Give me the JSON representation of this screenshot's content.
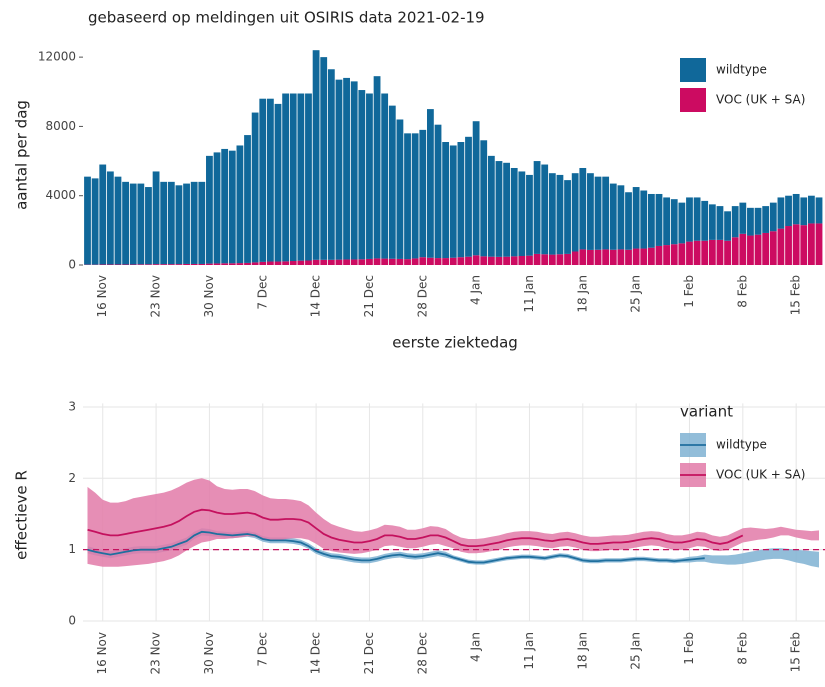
{
  "chart_data": [
    {
      "type": "stacked-bar",
      "title": "gebaseerd op meldingen uit OSIRIS data 2021-02-19",
      "ylabel": "aantal per dag",
      "xlabel": "eerste ziektedag",
      "categories": [
        null,
        null,
        "16 Nov",
        null,
        null,
        null,
        null,
        null,
        null,
        "23 Nov",
        null,
        null,
        null,
        null,
        null,
        null,
        "30 Nov",
        null,
        null,
        null,
        null,
        null,
        null,
        "7 Dec",
        null,
        null,
        null,
        null,
        null,
        null,
        "14 Dec",
        null,
        null,
        null,
        null,
        null,
        null,
        "21 Dec",
        null,
        null,
        null,
        null,
        null,
        null,
        "28 Dec",
        null,
        null,
        null,
        null,
        null,
        null,
        "4 Jan",
        null,
        null,
        null,
        null,
        null,
        null,
        "11 Jan",
        null,
        null,
        null,
        null,
        null,
        null,
        "18 Jan",
        null,
        null,
        null,
        null,
        null,
        null,
        "25 Jan",
        null,
        null,
        null,
        null,
        null,
        null,
        "1 Feb",
        null,
        null,
        null,
        null,
        null,
        null,
        "8 Feb",
        null,
        null,
        null,
        null,
        null,
        null,
        "15 Feb",
        null,
        null,
        null
      ],
      "series": [
        {
          "name": "wildtype",
          "color": "#10689a",
          "values": [
            5080,
            4980,
            5770,
            5370,
            5070,
            4770,
            4670,
            4660,
            4460,
            5350,
            4750,
            4750,
            4550,
            4640,
            4740,
            4740,
            6220,
            6410,
            6600,
            6500,
            6790,
            7380,
            8650,
            9420,
            9400,
            9100,
            9690,
            9670,
            9650,
            9640,
            12100,
            11700,
            11000,
            10390,
            10480,
            10280,
            9770,
            9550,
            10520,
            9530,
            8840,
            8050,
            7260,
            7220,
            7350,
            8580,
            7700,
            6700,
            6480,
            6650,
            6920,
            7740,
            6700,
            5820,
            5530,
            5420,
            5100,
            4880,
            4660,
            5360,
            5180,
            4700,
            4580,
            4260,
            4520,
            4700,
            4430,
            4220,
            4200,
            3820,
            3700,
            3320,
            3550,
            3350,
            3100,
            3000,
            2750,
            2600,
            2350,
            2550,
            2500,
            2300,
            2050,
            1950,
            1700,
            1800,
            1800,
            1600,
            1550,
            1550,
            1650,
            1800,
            1750,
            1750,
            1600,
            1600,
            1500
          ]
        },
        {
          "name": "VOC (UK + SA)",
          "color": "#cc0b61",
          "values": [
            20,
            20,
            30,
            30,
            30,
            30,
            30,
            40,
            40,
            50,
            50,
            50,
            50,
            60,
            60,
            60,
            80,
            90,
            100,
            100,
            110,
            120,
            150,
            180,
            200,
            200,
            210,
            230,
            250,
            260,
            300,
            300,
            300,
            310,
            320,
            320,
            330,
            350,
            380,
            370,
            360,
            350,
            340,
            380,
            450,
            420,
            400,
            400,
            420,
            450,
            480,
            560,
            500,
            480,
            470,
            480,
            500,
            520,
            540,
            640,
            620,
            600,
            620,
            640,
            780,
            900,
            870,
            880,
            900,
            880,
            900,
            880,
            950,
            950,
            1000,
            1100,
            1150,
            1200,
            1250,
            1350,
            1400,
            1400,
            1450,
            1450,
            1400,
            1600,
            1800,
            1700,
            1750,
            1850,
            1950,
            2100,
            2250,
            2350,
            2300,
            2400,
            2400
          ]
        }
      ],
      "ylim": [
        0,
        12700
      ],
      "yticks": [
        0,
        4000,
        8000,
        12000
      ],
      "grid": false,
      "legend": "top right"
    },
    {
      "type": "line-band",
      "ylabel": "effectieve R",
      "legend_title": "variant",
      "categories": [
        null,
        null,
        "16 Nov",
        null,
        null,
        null,
        null,
        null,
        null,
        "23 Nov",
        null,
        null,
        null,
        null,
        null,
        null,
        "30 Nov",
        null,
        null,
        null,
        null,
        null,
        null,
        "7 Dec",
        null,
        null,
        null,
        null,
        null,
        null,
        "14 Dec",
        null,
        null,
        null,
        null,
        null,
        null,
        "21 Dec",
        null,
        null,
        null,
        null,
        null,
        null,
        "28 Dec",
        null,
        null,
        null,
        null,
        null,
        null,
        "4 Jan",
        null,
        null,
        null,
        null,
        null,
        null,
        "11 Jan",
        null,
        null,
        null,
        null,
        null,
        null,
        "18 Jan",
        null,
        null,
        null,
        null,
        null,
        null,
        "25 Jan",
        null,
        null,
        null,
        null,
        null,
        null,
        "1 Feb",
        null,
        null,
        null,
        null,
        null,
        null,
        "8 Feb",
        null,
        null,
        null,
        null,
        null,
        null,
        "15 Feb",
        null,
        null,
        null
      ],
      "series": [
        {
          "name": "wildtype",
          "color": "#1f6f9e",
          "band_color": "#7fb2d2",
          "values": [
            1.0,
            0.97,
            0.95,
            0.93,
            0.95,
            0.97,
            0.99,
            1.0,
            1.0,
            1.0,
            1.02,
            1.04,
            1.08,
            1.12,
            1.2,
            1.25,
            1.24,
            1.22,
            1.21,
            1.2,
            1.21,
            1.22,
            1.2,
            1.15,
            1.13,
            1.13,
            1.13,
            1.12,
            1.1,
            1.05,
            0.98,
            0.94,
            0.91,
            0.9,
            0.88,
            0.86,
            0.85,
            0.85,
            0.87,
            0.9,
            0.92,
            0.93,
            0.91,
            0.9,
            0.91,
            0.93,
            0.95,
            0.93,
            0.89,
            0.86,
            0.83,
            0.82,
            0.82,
            0.84,
            0.86,
            0.88,
            0.89,
            0.9,
            0.9,
            0.89,
            0.88,
            0.9,
            0.92,
            0.91,
            0.88,
            0.85,
            0.84,
            0.84,
            0.85,
            0.85,
            0.85,
            0.86,
            0.87,
            0.87,
            0.86,
            0.85,
            0.85,
            0.84,
            0.85,
            0.86,
            0.87,
            0.88,
            null,
            null,
            null,
            null,
            null,
            null,
            null,
            null,
            null,
            null,
            null,
            null,
            null,
            null,
            null
          ],
          "lower": [
            0.95,
            0.92,
            0.9,
            0.88,
            0.9,
            0.92,
            0.94,
            0.95,
            0.95,
            0.95,
            0.97,
            0.99,
            1.03,
            1.07,
            1.15,
            1.2,
            1.19,
            1.18,
            1.17,
            1.16,
            1.17,
            1.18,
            1.16,
            1.11,
            1.09,
            1.09,
            1.09,
            1.08,
            1.06,
            1.01,
            0.94,
            0.9,
            0.87,
            0.86,
            0.84,
            0.82,
            0.81,
            0.81,
            0.83,
            0.86,
            0.88,
            0.89,
            0.87,
            0.86,
            0.87,
            0.89,
            0.91,
            0.89,
            0.86,
            0.83,
            0.8,
            0.79,
            0.79,
            0.81,
            0.83,
            0.85,
            0.86,
            0.87,
            0.87,
            0.86,
            0.85,
            0.87,
            0.89,
            0.88,
            0.85,
            0.82,
            0.81,
            0.81,
            0.82,
            0.82,
            0.82,
            0.83,
            0.84,
            0.84,
            0.83,
            0.82,
            0.82,
            0.81,
            0.82,
            0.82,
            0.83,
            0.83,
            0.81,
            0.8,
            0.79,
            0.79,
            0.8,
            0.82,
            0.84,
            0.86,
            0.87,
            0.87,
            0.85,
            0.82,
            0.8,
            0.77,
            0.75
          ],
          "upper": [
            1.05,
            1.02,
            1.0,
            0.98,
            1.0,
            1.02,
            1.04,
            1.05,
            1.05,
            1.05,
            1.07,
            1.09,
            1.13,
            1.17,
            1.25,
            1.3,
            1.29,
            1.26,
            1.25,
            1.24,
            1.25,
            1.26,
            1.24,
            1.19,
            1.17,
            1.17,
            1.17,
            1.16,
            1.14,
            1.09,
            1.02,
            0.98,
            0.95,
            0.94,
            0.92,
            0.9,
            0.89,
            0.89,
            0.91,
            0.94,
            0.96,
            0.97,
            0.95,
            0.94,
            0.95,
            0.97,
            0.99,
            0.97,
            0.92,
            0.89,
            0.86,
            0.85,
            0.85,
            0.87,
            0.89,
            0.91,
            0.92,
            0.93,
            0.93,
            0.92,
            0.91,
            0.93,
            0.95,
            0.94,
            0.91,
            0.88,
            0.87,
            0.87,
            0.88,
            0.88,
            0.88,
            0.89,
            0.9,
            0.9,
            0.89,
            0.88,
            0.88,
            0.87,
            0.88,
            0.9,
            0.91,
            0.93,
            0.92,
            0.92,
            0.92,
            0.93,
            0.95,
            0.97,
            0.99,
            1.01,
            1.02,
            1.02,
            1.01,
            1.0,
            0.99,
            0.98,
            0.97
          ]
        },
        {
          "name": "VOC (UK + SA)",
          "color": "#c4115e",
          "band_color": "#e27aa8",
          "values": [
            1.28,
            1.25,
            1.22,
            1.2,
            1.2,
            1.22,
            1.24,
            1.26,
            1.28,
            1.3,
            1.32,
            1.35,
            1.4,
            1.47,
            1.53,
            1.56,
            1.55,
            1.52,
            1.5,
            1.5,
            1.51,
            1.52,
            1.5,
            1.45,
            1.42,
            1.42,
            1.43,
            1.43,
            1.42,
            1.38,
            1.3,
            1.22,
            1.17,
            1.14,
            1.12,
            1.1,
            1.1,
            1.12,
            1.15,
            1.2,
            1.2,
            1.18,
            1.15,
            1.15,
            1.17,
            1.2,
            1.2,
            1.17,
            1.12,
            1.07,
            1.05,
            1.05,
            1.06,
            1.08,
            1.1,
            1.13,
            1.15,
            1.16,
            1.16,
            1.15,
            1.13,
            1.12,
            1.14,
            1.15,
            1.13,
            1.1,
            1.08,
            1.08,
            1.09,
            1.1,
            1.1,
            1.11,
            1.13,
            1.15,
            1.16,
            1.15,
            1.12,
            1.1,
            1.1,
            1.12,
            1.15,
            1.14,
            1.1,
            1.08,
            1.1,
            1.15,
            1.2,
            null,
            null,
            null,
            null,
            null,
            null,
            null,
            null,
            null,
            null
          ],
          "lower": [
            0.8,
            0.78,
            0.76,
            0.76,
            0.76,
            0.77,
            0.78,
            0.79,
            0.8,
            0.82,
            0.84,
            0.87,
            0.92,
            0.99,
            1.05,
            1.1,
            1.12,
            1.15,
            1.15,
            1.16,
            1.17,
            1.19,
            1.18,
            1.14,
            1.12,
            1.13,
            1.15,
            1.16,
            1.16,
            1.14,
            1.08,
            1.01,
            0.98,
            0.96,
            0.95,
            0.94,
            0.95,
            0.97,
            1.0,
            1.05,
            1.06,
            1.04,
            1.02,
            1.02,
            1.04,
            1.07,
            1.08,
            1.05,
            1.02,
            0.97,
            0.95,
            0.95,
            0.96,
            0.98,
            1.0,
            1.03,
            1.05,
            1.06,
            1.06,
            1.05,
            1.03,
            1.02,
            1.04,
            1.05,
            1.03,
            1.0,
            0.98,
            0.98,
            0.99,
            1.0,
            1.0,
            1.01,
            1.03,
            1.05,
            1.06,
            1.05,
            1.02,
            1.0,
            1.0,
            1.02,
            1.05,
            1.04,
            1.0,
            0.98,
            1.0,
            1.05,
            1.1,
            1.12,
            1.14,
            1.15,
            1.17,
            1.2,
            1.2,
            1.17,
            1.15,
            1.13,
            1.13
          ],
          "upper": [
            1.88,
            1.8,
            1.7,
            1.66,
            1.66,
            1.68,
            1.72,
            1.74,
            1.76,
            1.78,
            1.8,
            1.83,
            1.88,
            1.94,
            1.98,
            2.0,
            1.97,
            1.89,
            1.85,
            1.84,
            1.85,
            1.85,
            1.82,
            1.76,
            1.72,
            1.71,
            1.71,
            1.7,
            1.68,
            1.62,
            1.52,
            1.43,
            1.36,
            1.32,
            1.29,
            1.26,
            1.25,
            1.27,
            1.3,
            1.35,
            1.34,
            1.32,
            1.28,
            1.28,
            1.3,
            1.33,
            1.32,
            1.29,
            1.22,
            1.17,
            1.15,
            1.15,
            1.16,
            1.18,
            1.2,
            1.23,
            1.25,
            1.26,
            1.26,
            1.25,
            1.23,
            1.22,
            1.24,
            1.25,
            1.23,
            1.2,
            1.18,
            1.18,
            1.19,
            1.2,
            1.2,
            1.21,
            1.23,
            1.25,
            1.26,
            1.25,
            1.22,
            1.2,
            1.2,
            1.22,
            1.25,
            1.24,
            1.2,
            1.18,
            1.2,
            1.25,
            1.3,
            1.31,
            1.3,
            1.29,
            1.3,
            1.32,
            1.3,
            1.28,
            1.27,
            1.26,
            1.27
          ]
        }
      ],
      "reference_line": 1,
      "reference_color": "#c4115e",
      "ylim": [
        0,
        3.05
      ],
      "yticks": [
        0,
        1,
        2,
        3
      ],
      "grid": true,
      "legend": "top right"
    }
  ]
}
